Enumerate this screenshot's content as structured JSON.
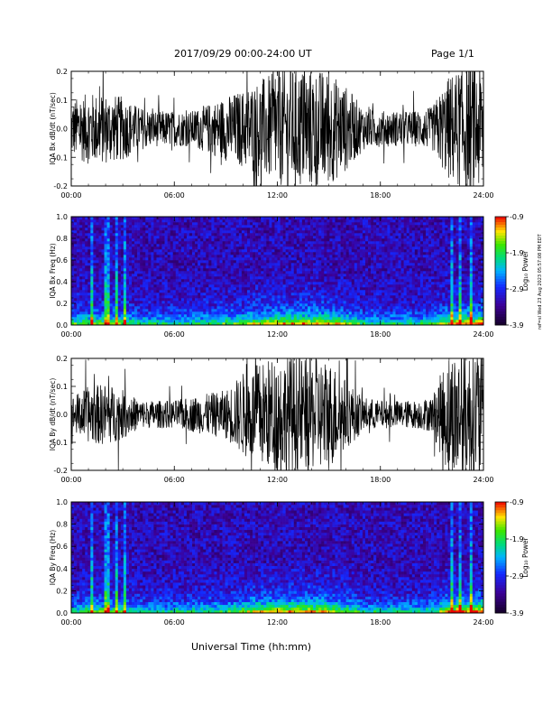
{
  "header": {
    "title": "2017/09/29  00:00-24:00 UT",
    "page": "Page 1/1"
  },
  "xaxis_title": "Universal Time (hh:mm)",
  "side_stamp": "ref=sl Wed 23 Aug 2023 05:57:08 PM EDT",
  "chart_data": [
    {
      "type": "line",
      "ylabel": "IQA Bx dB/dt (nT/sec)",
      "ylim": [
        -0.2,
        0.2
      ],
      "yticks": [
        "-0.2",
        "-0.1",
        "0.0",
        "0.1",
        "0.2"
      ],
      "xlim": [
        0,
        24
      ],
      "xticks": [
        "00:00",
        "06:00",
        "12:00",
        "18:00",
        "24:00"
      ],
      "activity": {
        "hours": [
          0,
          1,
          2,
          3,
          4,
          5,
          6,
          7,
          8,
          9,
          10,
          11,
          12,
          13,
          14,
          15,
          16,
          17,
          18,
          19,
          20,
          21,
          22,
          23,
          24
        ],
        "amplitude": [
          0.08,
          0.1,
          0.1,
          0.09,
          0.06,
          0.05,
          0.05,
          0.05,
          0.07,
          0.09,
          0.11,
          0.14,
          0.16,
          0.17,
          0.17,
          0.16,
          0.12,
          0.06,
          0.05,
          0.05,
          0.05,
          0.06,
          0.15,
          0.18,
          0.18
        ]
      }
    },
    {
      "type": "heatmap",
      "ylabel": "IQA Bx Freq (Hz)",
      "ylim": [
        0,
        1.0
      ],
      "yticks": [
        "0.0",
        "0.2",
        "0.4",
        "0.6",
        "0.8",
        "1.0"
      ],
      "xlim": [
        0,
        24
      ],
      "xticks": [
        "00:00",
        "06:00",
        "12:00",
        "18:00",
        "24:00"
      ],
      "colorbar": {
        "label": "Log₁₀ Power",
        "min": -3.9,
        "max": -0.9,
        "ticks": [
          "-0.9",
          "-1.9",
          "-2.9",
          "-3.9"
        ]
      },
      "bright_bands_hours": [
        1.2,
        2.1,
        2.6,
        3.1,
        22.2,
        22.6,
        23.3
      ]
    },
    {
      "type": "line",
      "ylabel": "IQA By dB/dt (nT/sec)",
      "ylim": [
        -0.2,
        0.2
      ],
      "yticks": [
        "-0.2",
        "-0.1",
        "0.0",
        "0.1",
        "0.2"
      ],
      "xlim": [
        0,
        24
      ],
      "xticks": [
        "00:00",
        "06:00",
        "12:00",
        "18:00",
        "24:00"
      ],
      "activity": {
        "hours": [
          0,
          1,
          2,
          3,
          4,
          5,
          6,
          7,
          8,
          9,
          10,
          11,
          12,
          13,
          14,
          15,
          16,
          17,
          18,
          19,
          20,
          21,
          22,
          23,
          24
        ],
        "amplitude": [
          0.05,
          0.08,
          0.09,
          0.07,
          0.04,
          0.04,
          0.04,
          0.05,
          0.06,
          0.07,
          0.12,
          0.15,
          0.17,
          0.17,
          0.16,
          0.16,
          0.1,
          0.05,
          0.04,
          0.04,
          0.04,
          0.05,
          0.18,
          0.19,
          0.19
        ]
      }
    },
    {
      "type": "heatmap",
      "ylabel": "IQA By Freq (Hz)",
      "ylim": [
        0,
        1.0
      ],
      "yticks": [
        "0.0",
        "0.2",
        "0.4",
        "0.6",
        "0.8",
        "1.0"
      ],
      "xlim": [
        0,
        24
      ],
      "xticks": [
        "00:00",
        "06:00",
        "12:00",
        "18:00",
        "24:00"
      ],
      "colorbar": {
        "label": "Log₁₀ Power",
        "min": -3.9,
        "max": -0.9,
        "ticks": [
          "-0.9",
          "-1.9",
          "-2.9",
          "-3.9"
        ]
      },
      "bright_bands_hours": [
        1.2,
        2.1,
        2.6,
        3.1,
        22.2,
        22.6,
        23.3
      ]
    }
  ]
}
